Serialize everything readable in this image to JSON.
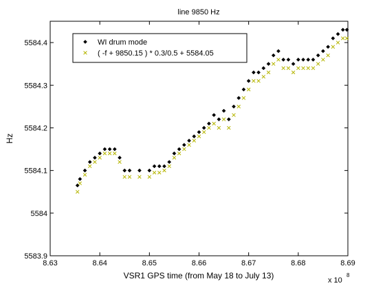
{
  "chart_data": {
    "type": "scatter",
    "title": "line 9850 Hz",
    "xlabel": "VSR1 GPS time (from May 18 to July 13)",
    "ylabel": "Hz",
    "x_exponent_label": "x 10",
    "x_exponent_power": "8",
    "xlim": [
      8.63,
      8.69
    ],
    "ylim": [
      5583.9,
      5584.45
    ],
    "xticks": [
      "8.63",
      "8.64",
      "8.65",
      "8.66",
      "8.67",
      "8.68",
      "8.69"
    ],
    "yticks": [
      "5583.9",
      "5584",
      "5584.1",
      "5584.2",
      "5584.3",
      "5584.4"
    ],
    "legend_position": "top-left",
    "grid": false,
    "colors": {
      "series1": "#000000",
      "series2": "#b5b500"
    },
    "series": [
      {
        "name": "WI drum mode",
        "marker": "diamond",
        "x": [
          8.6355,
          8.636,
          8.637,
          8.638,
          8.639,
          8.64,
          8.641,
          8.642,
          8.643,
          8.644,
          8.645,
          8.646,
          8.648,
          8.65,
          8.651,
          8.652,
          8.653,
          8.654,
          8.655,
          8.656,
          8.657,
          8.658,
          8.659,
          8.66,
          8.661,
          8.662,
          8.663,
          8.664,
          8.665,
          8.666,
          8.667,
          8.668,
          8.669,
          8.67,
          8.671,
          8.672,
          8.673,
          8.674,
          8.675,
          8.676,
          8.677,
          8.678,
          8.679,
          8.68,
          8.681,
          8.682,
          8.683,
          8.684,
          8.685,
          8.686,
          8.687,
          8.688,
          8.689,
          8.6898
        ],
        "y": [
          5584.065,
          5584.08,
          5584.1,
          5584.12,
          5584.13,
          5584.14,
          5584.15,
          5584.15,
          5584.15,
          5584.13,
          5584.1,
          5584.1,
          5584.1,
          5584.1,
          5584.11,
          5584.11,
          5584.11,
          5584.12,
          5584.14,
          5584.15,
          5584.16,
          5584.17,
          5584.18,
          5584.19,
          5584.2,
          5584.21,
          5584.23,
          5584.22,
          5584.24,
          5584.22,
          5584.25,
          5584.27,
          5584.29,
          5584.31,
          5584.33,
          5584.33,
          5584.34,
          5584.35,
          5584.37,
          5584.38,
          5584.36,
          5584.36,
          5584.35,
          5584.36,
          5584.36,
          5584.36,
          5584.36,
          5584.37,
          5584.38,
          5584.39,
          5584.41,
          5584.42,
          5584.43,
          5584.43
        ]
      },
      {
        "name": "( -f + 9850.15 ) * 0.3/0.5 + 5584.05",
        "marker": "x",
        "x": [
          8.6355,
          8.636,
          8.637,
          8.638,
          8.639,
          8.64,
          8.641,
          8.642,
          8.643,
          8.644,
          8.645,
          8.646,
          8.648,
          8.65,
          8.651,
          8.652,
          8.653,
          8.654,
          8.655,
          8.656,
          8.657,
          8.658,
          8.659,
          8.66,
          8.661,
          8.662,
          8.663,
          8.664,
          8.665,
          8.666,
          8.667,
          8.668,
          8.669,
          8.67,
          8.671,
          8.672,
          8.673,
          8.674,
          8.675,
          8.676,
          8.677,
          8.678,
          8.679,
          8.68,
          8.681,
          8.682,
          8.683,
          8.684,
          8.685,
          8.686,
          8.687,
          8.688,
          8.689,
          8.6898
        ],
        "y": [
          5584.05,
          5584.07,
          5584.09,
          5584.11,
          5584.12,
          5584.13,
          5584.14,
          5584.14,
          5584.14,
          5584.12,
          5584.085,
          5584.085,
          5584.085,
          5584.085,
          5584.095,
          5584.095,
          5584.1,
          5584.11,
          5584.13,
          5584.14,
          5584.15,
          5584.16,
          5584.17,
          5584.18,
          5584.19,
          5584.2,
          5584.21,
          5584.2,
          5584.22,
          5584.2,
          5584.23,
          5584.25,
          5584.27,
          5584.29,
          5584.31,
          5584.31,
          5584.32,
          5584.33,
          5584.35,
          5584.36,
          5584.34,
          5584.34,
          5584.33,
          5584.34,
          5584.34,
          5584.34,
          5584.34,
          5584.35,
          5584.36,
          5584.37,
          5584.39,
          5584.4,
          5584.41,
          5584.41
        ]
      }
    ]
  }
}
